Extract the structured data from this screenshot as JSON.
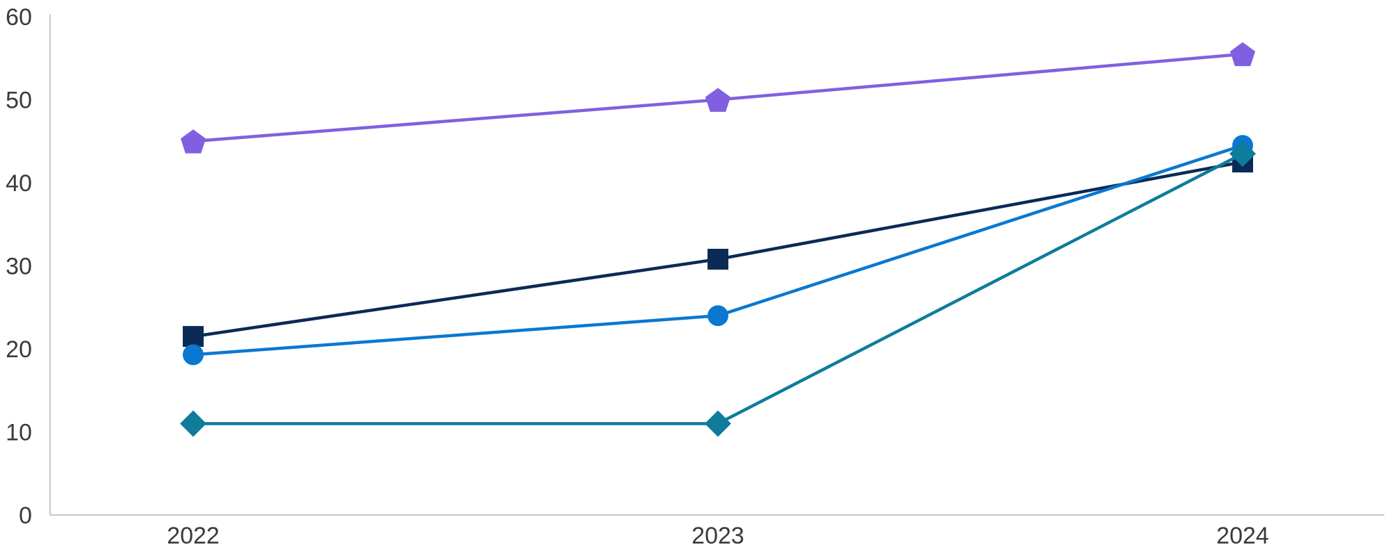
{
  "chart_data": {
    "type": "line",
    "x": [
      "2022",
      "2023",
      "2024"
    ],
    "ylim": [
      0,
      60
    ],
    "yticks": [
      0,
      10,
      20,
      30,
      40,
      50,
      60
    ],
    "grid": false,
    "legend": "none",
    "series": [
      {
        "values": [
          45,
          50,
          55.5
        ],
        "color": "#8060E0",
        "marker": "pentagon"
      },
      {
        "values": [
          21.5,
          30.8,
          42.5
        ],
        "color": "#0B2A55",
        "marker": "square"
      },
      {
        "values": [
          19.3,
          24,
          44.5
        ],
        "color": "#0A78D0",
        "marker": "circle"
      },
      {
        "values": [
          11,
          11,
          43.5
        ],
        "color": "#0E7C9A",
        "marker": "diamond"
      }
    ]
  }
}
